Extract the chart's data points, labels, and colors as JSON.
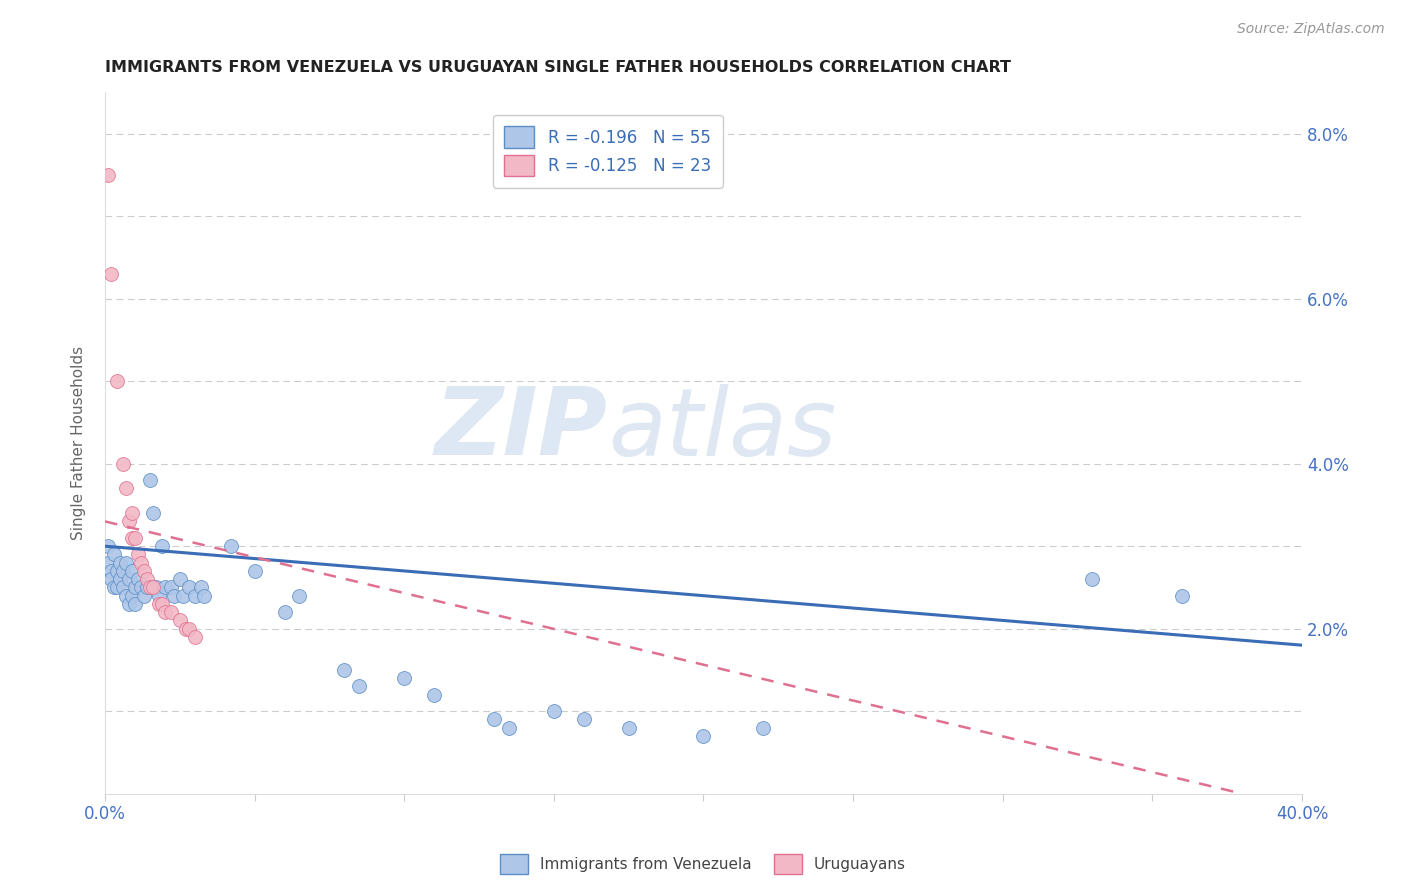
{
  "title": "IMMIGRANTS FROM VENEZUELA VS URUGUAYAN SINGLE FATHER HOUSEHOLDS CORRELATION CHART",
  "source": "Source: ZipAtlas.com",
  "ylabel": "Single Father Households",
  "xlim": [
    0.0,
    0.4
  ],
  "ylim": [
    0.0,
    0.085
  ],
  "xticks": [
    0.0,
    0.05,
    0.1,
    0.15,
    0.2,
    0.25,
    0.3,
    0.35,
    0.4
  ],
  "xticklabels": [
    "0.0%",
    "",
    "",
    "",
    "",
    "",
    "",
    "",
    "40.0%"
  ],
  "yticks": [
    0.0,
    0.01,
    0.02,
    0.03,
    0.04,
    0.05,
    0.06,
    0.07,
    0.08
  ],
  "yticklabels": [
    "",
    "",
    "2.0%",
    "",
    "4.0%",
    "",
    "6.0%",
    "",
    "8.0%"
  ],
  "watermark_zip": "ZIP",
  "watermark_atlas": "atlas",
  "legend1_label": "R = -0.196   N = 55",
  "legend2_label": "R = -0.125   N = 23",
  "legend_label_blue": "Immigrants from Venezuela",
  "legend_label_pink": "Uruguayans",
  "blue_color": "#aec6e8",
  "blue_edge_color": "#5b8ec4",
  "pink_color": "#f2b8c6",
  "pink_edge_color": "#e07090",
  "blue_line_color": "#3a6db5",
  "pink_line_color": "#e07090",
  "blue_scatter": [
    [
      0.001,
      0.03
    ],
    [
      0.001,
      0.028
    ],
    [
      0.002,
      0.027
    ],
    [
      0.002,
      0.026
    ],
    [
      0.003,
      0.029
    ],
    [
      0.003,
      0.025
    ],
    [
      0.004,
      0.027
    ],
    [
      0.004,
      0.025
    ],
    [
      0.005,
      0.028
    ],
    [
      0.005,
      0.026
    ],
    [
      0.006,
      0.027
    ],
    [
      0.006,
      0.025
    ],
    [
      0.007,
      0.028
    ],
    [
      0.007,
      0.024
    ],
    [
      0.008,
      0.026
    ],
    [
      0.008,
      0.023
    ],
    [
      0.009,
      0.027
    ],
    [
      0.009,
      0.024
    ],
    [
      0.01,
      0.025
    ],
    [
      0.01,
      0.023
    ],
    [
      0.011,
      0.026
    ],
    [
      0.012,
      0.025
    ],
    [
      0.013,
      0.024
    ],
    [
      0.014,
      0.025
    ],
    [
      0.015,
      0.038
    ],
    [
      0.016,
      0.034
    ],
    [
      0.017,
      0.025
    ],
    [
      0.018,
      0.024
    ],
    [
      0.019,
      0.03
    ],
    [
      0.02,
      0.025
    ],
    [
      0.022,
      0.025
    ],
    [
      0.023,
      0.024
    ],
    [
      0.025,
      0.026
    ],
    [
      0.026,
      0.024
    ],
    [
      0.028,
      0.025
    ],
    [
      0.03,
      0.024
    ],
    [
      0.032,
      0.025
    ],
    [
      0.033,
      0.024
    ],
    [
      0.042,
      0.03
    ],
    [
      0.05,
      0.027
    ],
    [
      0.06,
      0.022
    ],
    [
      0.065,
      0.024
    ],
    [
      0.08,
      0.015
    ],
    [
      0.085,
      0.013
    ],
    [
      0.1,
      0.014
    ],
    [
      0.11,
      0.012
    ],
    [
      0.13,
      0.009
    ],
    [
      0.135,
      0.008
    ],
    [
      0.15,
      0.01
    ],
    [
      0.16,
      0.009
    ],
    [
      0.175,
      0.008
    ],
    [
      0.2,
      0.007
    ],
    [
      0.22,
      0.008
    ],
    [
      0.33,
      0.026
    ],
    [
      0.36,
      0.024
    ]
  ],
  "pink_scatter": [
    [
      0.001,
      0.075
    ],
    [
      0.002,
      0.063
    ],
    [
      0.004,
      0.05
    ],
    [
      0.006,
      0.04
    ],
    [
      0.007,
      0.037
    ],
    [
      0.008,
      0.033
    ],
    [
      0.009,
      0.034
    ],
    [
      0.009,
      0.031
    ],
    [
      0.01,
      0.031
    ],
    [
      0.011,
      0.029
    ],
    [
      0.012,
      0.028
    ],
    [
      0.013,
      0.027
    ],
    [
      0.014,
      0.026
    ],
    [
      0.015,
      0.025
    ],
    [
      0.016,
      0.025
    ],
    [
      0.018,
      0.023
    ],
    [
      0.019,
      0.023
    ],
    [
      0.02,
      0.022
    ],
    [
      0.022,
      0.022
    ],
    [
      0.025,
      0.021
    ],
    [
      0.027,
      0.02
    ],
    [
      0.028,
      0.02
    ],
    [
      0.03,
      0.019
    ]
  ],
  "blue_trendline_x": [
    0.0,
    0.4
  ],
  "blue_trendline_y": [
    0.03,
    0.018
  ],
  "pink_trendline_x": [
    0.0,
    0.38
  ],
  "pink_trendline_y": [
    0.033,
    0.0
  ]
}
